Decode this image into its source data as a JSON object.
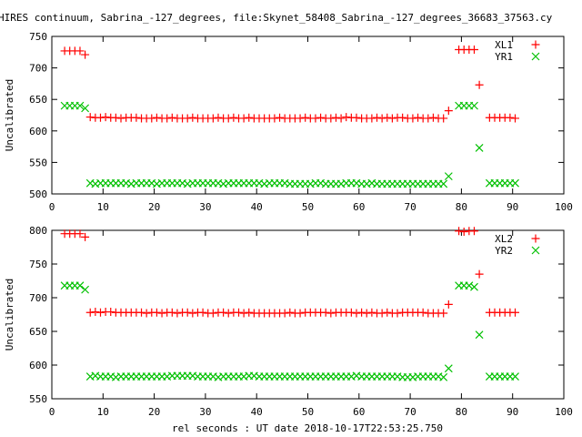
{
  "chart_data": {
    "title": "HIRES continuum, Sabrina_-127_degrees, file:Skynet_58408_Sabrina_-127_degrees_36683_37563.cy",
    "xlabel": "rel seconds : UT date 2018-10-17T22:53:25.750",
    "colors": {
      "XL": "#ff0000",
      "YR": "#00c000"
    },
    "x": [
      2.5,
      3.5,
      4.5,
      5.5,
      6.5,
      7.5,
      8.5,
      9.5,
      10.5,
      11.5,
      12.5,
      13.5,
      14.5,
      15.5,
      16.5,
      17.5,
      18.5,
      19.5,
      20.5,
      21.5,
      22.5,
      23.5,
      24.5,
      25.5,
      26.5,
      27.5,
      28.5,
      29.5,
      30.5,
      31.5,
      32.5,
      33.5,
      34.5,
      35.5,
      36.5,
      37.5,
      38.5,
      39.5,
      40.5,
      41.5,
      42.5,
      43.5,
      44.5,
      45.5,
      46.5,
      47.5,
      48.5,
      49.5,
      50.5,
      51.5,
      52.5,
      53.5,
      54.5,
      55.5,
      56.5,
      57.5,
      58.5,
      59.5,
      60.5,
      61.5,
      62.5,
      63.5,
      64.5,
      65.5,
      66.5,
      67.5,
      68.5,
      69.5,
      70.5,
      71.5,
      72.5,
      73.5,
      74.5,
      75.5,
      76.5,
      77.5,
      79.5,
      80.5,
      81.5,
      82.5,
      83.5,
      85.5,
      86.5,
      87.5,
      88.5,
      89.5,
      90.5
    ],
    "panels": [
      {
        "type": "scatter",
        "ylabel": "Uncalibrated",
        "xlim": [
          0,
          100
        ],
        "ylim": [
          500,
          750
        ],
        "xticks": [
          "0",
          "10",
          "20",
          "30",
          "40",
          "50",
          "60",
          "70",
          "80",
          "90",
          "100"
        ],
        "yticks": [
          "500",
          "550",
          "600",
          "650",
          "700",
          "750"
        ],
        "legend_position": "top-right",
        "series": [
          {
            "name": "XL1",
            "marker": "plus",
            "values": [
              727,
              727,
              727,
              727,
              721,
              622,
              621,
              621,
              622,
              621,
              621,
              620,
              621,
              621,
              621,
              620,
              620,
              620,
              621,
              620,
              620,
              621,
              620,
              620,
              620,
              621,
              620,
              620,
              620,
              620,
              621,
              620,
              620,
              621,
              620,
              620,
              621,
              620,
              620,
              620,
              620,
              620,
              621,
              620,
              620,
              620,
              620,
              621,
              620,
              620,
              621,
              620,
              620,
              621,
              620,
              622,
              621,
              621,
              620,
              620,
              620,
              621,
              620,
              621,
              620,
              621,
              621,
              620,
              620,
              621,
              620,
              620,
              621,
              620,
              620,
              632,
              729,
              729,
              729,
              729,
              673,
              621,
              621,
              621,
              621,
              621,
              620
            ]
          },
          {
            "name": "YR1",
            "marker": "cross",
            "values": [
              640,
              640,
              640,
              640,
              636,
              517,
              516,
              517,
              517,
              517,
              517,
              517,
              517,
              516,
              517,
              517,
              517,
              517,
              516,
              517,
              517,
              517,
              517,
              517,
              516,
              517,
              517,
              517,
              517,
              517,
              517,
              516,
              517,
              517,
              517,
              517,
              517,
              517,
              517,
              516,
              517,
              517,
              517,
              517,
              516,
              516,
              516,
              516,
              516,
              517,
              517,
              516,
              516,
              516,
              516,
              517,
              517,
              517,
              516,
              516,
              517,
              516,
              516,
              516,
              516,
              516,
              516,
              516,
              516,
              516,
              516,
              516,
              516,
              516,
              516,
              528,
              640,
              640,
              640,
              640,
              573,
              517,
              517,
              517,
              517,
              517,
              517
            ]
          }
        ]
      },
      {
        "type": "scatter",
        "ylabel": "Uncalibrated",
        "xlim": [
          0,
          100
        ],
        "ylim": [
          550,
          800
        ],
        "xticks": [
          "0",
          "10",
          "20",
          "30",
          "40",
          "50",
          "60",
          "70",
          "80",
          "90",
          "100"
        ],
        "yticks": [
          "550",
          "600",
          "650",
          "700",
          "750",
          "800"
        ],
        "legend_position": "top-right",
        "series": [
          {
            "name": "XL2",
            "marker": "plus",
            "values": [
              795,
              795,
              795,
              795,
              790,
              678,
              679,
              678,
              679,
              679,
              678,
              678,
              678,
              678,
              678,
              678,
              677,
              678,
              678,
              677,
              678,
              678,
              677,
              678,
              678,
              677,
              678,
              678,
              677,
              677,
              678,
              678,
              677,
              678,
              678,
              677,
              678,
              677,
              677,
              677,
              677,
              677,
              677,
              677,
              678,
              677,
              677,
              678,
              678,
              678,
              678,
              678,
              677,
              678,
              678,
              678,
              678,
              677,
              678,
              677,
              678,
              677,
              677,
              678,
              677,
              677,
              678,
              678,
              678,
              678,
              678,
              677,
              677,
              677,
              677,
              690,
              799,
              798,
              799,
              799,
              735,
              678,
              678,
              678,
              678,
              678,
              678
            ]
          },
          {
            "name": "YR2",
            "marker": "cross",
            "values": [
              718,
              718,
              718,
              718,
              712,
              583,
              584,
              583,
              583,
              583,
              582,
              583,
              583,
              583,
              583,
              583,
              583,
              583,
              583,
              583,
              583,
              584,
              584,
              584,
              584,
              584,
              583,
              583,
              583,
              583,
              582,
              583,
              583,
              583,
              583,
              583,
              584,
              584,
              583,
              583,
              583,
              583,
              583,
              583,
              583,
              583,
              583,
              583,
              583,
              583,
              583,
              583,
              583,
              583,
              583,
              583,
              583,
              584,
              583,
              583,
              583,
              583,
              583,
              583,
              583,
              583,
              582,
              582,
              582,
              583,
              583,
              583,
              583,
              583,
              582,
              595,
              718,
              718,
              718,
              716,
              645,
              583,
              583,
              583,
              583,
              583,
              583
            ]
          }
        ]
      }
    ]
  }
}
